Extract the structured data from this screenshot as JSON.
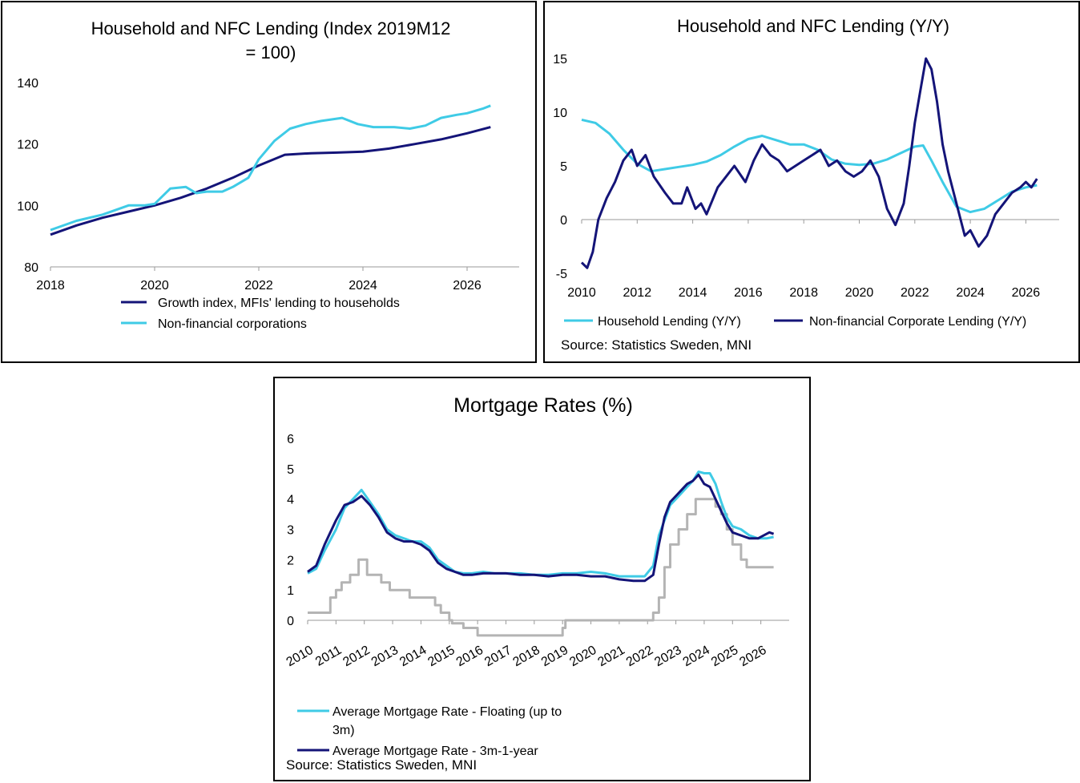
{
  "colors": {
    "navy": "#141478",
    "cyan": "#3fcbe6",
    "grey": "#b4b4b4",
    "axis": "#9a9a9a"
  },
  "chart_data": [
    {
      "type": "line",
      "title_line1": "Household and NFC Lending (Index 2019M12",
      "title_line2": "= 100)",
      "xlim": [
        2018,
        2027
      ],
      "ylim": [
        80,
        145
      ],
      "x_ticks": [
        2018,
        2020,
        2022,
        2024,
        2026
      ],
      "y_ticks": [
        80,
        100,
        120,
        140
      ],
      "legend": "bottom",
      "series": [
        {
          "name": "Growth index, MFIs' lending to households",
          "color": "#141478",
          "x": [
            2018.0,
            2018.5,
            2019.0,
            2019.5,
            2020.0,
            2020.5,
            2021.0,
            2021.5,
            2022.0,
            2022.5,
            2023.0,
            2023.5,
            2024.0,
            2024.5,
            2025.0,
            2025.5,
            2026.0,
            2026.45
          ],
          "y": [
            90.5,
            93.5,
            96.0,
            98.0,
            100.0,
            102.5,
            105.5,
            109.0,
            113.0,
            116.5,
            117.0,
            117.2,
            117.5,
            118.5,
            120.0,
            121.5,
            123.5,
            125.5
          ]
        },
        {
          "name": "Non-financial corporations",
          "color": "#3fcbe6",
          "x": [
            2018.0,
            2018.5,
            2019.0,
            2019.5,
            2019.8,
            2020.0,
            2020.3,
            2020.6,
            2020.8,
            2021.0,
            2021.3,
            2021.5,
            2021.8,
            2022.0,
            2022.3,
            2022.6,
            2022.9,
            2023.2,
            2023.6,
            2023.9,
            2024.2,
            2024.6,
            2024.9,
            2025.2,
            2025.5,
            2025.8,
            2026.0,
            2026.3,
            2026.45
          ],
          "y": [
            92.0,
            95.0,
            97.0,
            100.0,
            100.0,
            100.5,
            105.5,
            106.0,
            104.0,
            104.5,
            104.5,
            106.0,
            109.0,
            115.0,
            121.0,
            125.0,
            126.5,
            127.5,
            128.5,
            126.5,
            125.5,
            125.5,
            125.0,
            126.0,
            128.5,
            129.5,
            130.0,
            131.5,
            132.5
          ]
        }
      ]
    },
    {
      "type": "line",
      "title": "Household and NFC Lending (Y/Y)",
      "xlim": [
        2010,
        2027.2
      ],
      "ylim": [
        -5,
        17
      ],
      "x_ticks": [
        2010,
        2012,
        2014,
        2016,
        2018,
        2020,
        2022,
        2024,
        2026
      ],
      "y_ticks": [
        -5,
        0,
        5,
        10,
        15
      ],
      "legend": "bottom",
      "source": "Source: Statistics Sweden, MNI",
      "series": [
        {
          "name": "Household Lending (Y/Y)",
          "color": "#3fcbe6",
          "x": [
            2010.0,
            2010.5,
            2011.0,
            2011.5,
            2012.0,
            2012.5,
            2013.0,
            2013.5,
            2014.0,
            2014.5,
            2015.0,
            2015.5,
            2016.0,
            2016.5,
            2017.0,
            2017.5,
            2018.0,
            2018.5,
            2019.0,
            2019.5,
            2020.0,
            2020.5,
            2021.0,
            2021.5,
            2022.0,
            2022.3,
            2022.6,
            2023.0,
            2023.5,
            2024.0,
            2024.5,
            2025.0,
            2025.5,
            2026.0,
            2026.4
          ],
          "y": [
            9.3,
            9.0,
            8.0,
            6.5,
            5.2,
            4.5,
            4.7,
            4.9,
            5.1,
            5.4,
            6.0,
            6.8,
            7.5,
            7.8,
            7.4,
            7.0,
            7.0,
            6.5,
            5.6,
            5.2,
            5.1,
            5.2,
            5.6,
            6.2,
            6.8,
            6.9,
            5.5,
            3.5,
            1.2,
            0.7,
            1.0,
            1.8,
            2.6,
            3.0,
            3.2
          ]
        },
        {
          "name": "Non-financial Corporate Lending (Y/Y)",
          "color": "#141478",
          "x": [
            2010.0,
            2010.2,
            2010.4,
            2010.6,
            2010.9,
            2011.2,
            2011.5,
            2011.8,
            2012.0,
            2012.3,
            2012.6,
            2013.0,
            2013.3,
            2013.6,
            2013.8,
            2014.1,
            2014.3,
            2014.5,
            2014.9,
            2015.2,
            2015.5,
            2015.9,
            2016.2,
            2016.5,
            2016.8,
            2017.1,
            2017.4,
            2017.7,
            2018.0,
            2018.3,
            2018.6,
            2018.9,
            2019.2,
            2019.5,
            2019.8,
            2020.1,
            2020.4,
            2020.7,
            2021.0,
            2021.3,
            2021.6,
            2021.8,
            2022.0,
            2022.2,
            2022.4,
            2022.6,
            2022.8,
            2023.0,
            2023.2,
            2023.5,
            2023.8,
            2024.0,
            2024.3,
            2024.6,
            2024.9,
            2025.2,
            2025.5,
            2025.8,
            2026.0,
            2026.2,
            2026.4
          ],
          "y": [
            -4.0,
            -4.5,
            -3.0,
            0.0,
            2.0,
            3.5,
            5.5,
            6.5,
            5.0,
            6.0,
            4.0,
            2.5,
            1.5,
            1.5,
            3.0,
            1.0,
            1.5,
            0.5,
            3.0,
            4.0,
            5.0,
            3.5,
            5.5,
            7.0,
            6.0,
            5.5,
            4.5,
            5.0,
            5.5,
            6.0,
            6.5,
            5.0,
            5.5,
            4.5,
            4.0,
            4.5,
            5.5,
            4.0,
            1.0,
            -0.5,
            1.5,
            5.0,
            9.0,
            12.0,
            15.0,
            14.0,
            11.0,
            7.0,
            4.5,
            1.5,
            -1.5,
            -1.0,
            -2.5,
            -1.5,
            0.5,
            1.5,
            2.5,
            3.0,
            3.5,
            3.0,
            3.8
          ]
        }
      ]
    },
    {
      "type": "line",
      "title": "Mortgage Rates (%)",
      "xlim": [
        2010,
        2027
      ],
      "ylim": [
        0,
        6
      ],
      "x_ticks": [
        2010,
        2011,
        2012,
        2013,
        2014,
        2015,
        2016,
        2017,
        2018,
        2019,
        2020,
        2021,
        2022,
        2023,
        2024,
        2025,
        2026
      ],
      "y_ticks": [
        0,
        1,
        2,
        3,
        4,
        5,
        6
      ],
      "legend": "bottom",
      "source": "Source: Statistics Sweden, MNI",
      "series": [
        {
          "name": "Average Mortgage Rate - Floating (up to 3m)",
          "label_line1": "Average Mortgage Rate - Floating (up to",
          "label_line2": "3m)",
          "color": "#3fcbe6",
          "x": [
            2010.0,
            2010.3,
            2010.6,
            2011.0,
            2011.3,
            2011.6,
            2011.9,
            2012.2,
            2012.5,
            2012.8,
            2013.1,
            2013.4,
            2013.7,
            2014.0,
            2014.3,
            2014.6,
            2014.9,
            2015.2,
            2015.5,
            2015.8,
            2016.2,
            2016.6,
            2017.0,
            2017.5,
            2018.0,
            2018.5,
            2019.0,
            2019.5,
            2020.0,
            2020.5,
            2021.0,
            2021.5,
            2021.9,
            2022.2,
            2022.4,
            2022.6,
            2022.8,
            2023.0,
            2023.2,
            2023.4,
            2023.6,
            2023.8,
            2024.0,
            2024.2,
            2024.4,
            2024.6,
            2024.8,
            2025.0,
            2025.3,
            2025.6,
            2025.9,
            2026.2,
            2026.45
          ],
          "y": [
            1.55,
            1.7,
            2.3,
            3.0,
            3.7,
            4.0,
            4.3,
            3.9,
            3.5,
            3.0,
            2.8,
            2.7,
            2.6,
            2.6,
            2.4,
            2.0,
            1.8,
            1.6,
            1.55,
            1.55,
            1.6,
            1.55,
            1.55,
            1.55,
            1.5,
            1.5,
            1.55,
            1.55,
            1.6,
            1.55,
            1.45,
            1.45,
            1.45,
            1.8,
            2.8,
            3.3,
            3.8,
            4.0,
            4.2,
            4.4,
            4.6,
            4.9,
            4.85,
            4.85,
            4.5,
            3.9,
            3.4,
            3.1,
            3.0,
            2.8,
            2.7,
            2.7,
            2.75
          ]
        },
        {
          "name": "Average Mortgage Rate - 3m-1-year",
          "color": "#141478",
          "x": [
            2010.0,
            2010.3,
            2010.6,
            2011.0,
            2011.3,
            2011.6,
            2011.9,
            2012.2,
            2012.5,
            2012.8,
            2013.1,
            2013.4,
            2013.7,
            2014.0,
            2014.3,
            2014.6,
            2014.9,
            2015.2,
            2015.5,
            2015.8,
            2016.2,
            2016.6,
            2017.0,
            2017.5,
            2018.0,
            2018.5,
            2019.0,
            2019.5,
            2020.0,
            2020.5,
            2021.0,
            2021.5,
            2021.9,
            2022.2,
            2022.4,
            2022.6,
            2022.8,
            2023.0,
            2023.2,
            2023.4,
            2023.6,
            2023.8,
            2024.0,
            2024.2,
            2024.4,
            2024.6,
            2024.8,
            2025.0,
            2025.3,
            2025.6,
            2025.9,
            2026.1,
            2026.3,
            2026.45
          ],
          "y": [
            1.6,
            1.8,
            2.5,
            3.3,
            3.8,
            3.9,
            4.1,
            3.8,
            3.4,
            2.9,
            2.7,
            2.6,
            2.6,
            2.5,
            2.3,
            1.9,
            1.7,
            1.6,
            1.5,
            1.5,
            1.55,
            1.55,
            1.55,
            1.5,
            1.5,
            1.45,
            1.5,
            1.5,
            1.45,
            1.45,
            1.35,
            1.3,
            1.3,
            1.5,
            2.5,
            3.4,
            3.9,
            4.1,
            4.3,
            4.5,
            4.6,
            4.8,
            4.5,
            4.4,
            4.0,
            3.6,
            3.2,
            2.9,
            2.8,
            2.7,
            2.7,
            2.8,
            2.9,
            2.85
          ]
        },
        {
          "name": "",
          "color": "#b4b4b4",
          "step": true,
          "x": [
            2010.0,
            2010.5,
            2010.8,
            2011.0,
            2011.2,
            2011.5,
            2011.8,
            2012.1,
            2012.6,
            2012.9,
            2013.6,
            2013.9,
            2014.5,
            2014.7,
            2015.0,
            2015.1,
            2015.5,
            2016.0,
            2017.0,
            2018.0,
            2019.0,
            2019.1,
            2020.0,
            2021.0,
            2021.9,
            2022.2,
            2022.4,
            2022.6,
            2022.8,
            2023.1,
            2023.4,
            2023.7,
            2024.4,
            2024.6,
            2024.8,
            2025.0,
            2025.3,
            2025.5,
            2026.0,
            2026.45
          ],
          "y": [
            0.25,
            0.25,
            0.75,
            1.0,
            1.25,
            1.5,
            2.0,
            1.5,
            1.25,
            1.0,
            0.75,
            0.75,
            0.5,
            0.25,
            0.0,
            -0.1,
            -0.25,
            -0.5,
            -0.5,
            -0.5,
            -0.25,
            0.0,
            0.0,
            0.0,
            0.0,
            0.25,
            0.75,
            1.75,
            2.5,
            3.0,
            3.5,
            4.0,
            3.75,
            3.5,
            3.0,
            2.5,
            2.0,
            1.75,
            1.75,
            1.75
          ]
        }
      ]
    }
  ]
}
